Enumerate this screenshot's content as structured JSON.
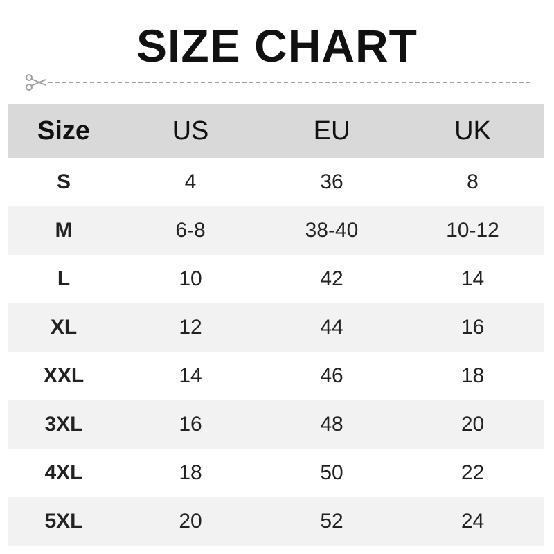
{
  "title": "SIZE CHART",
  "icons": {
    "cut_line": "scissors-icon"
  },
  "colors": {
    "header_bg": "#d9d9d9",
    "alt_row_bg": "#f2f2f2",
    "dash": "#a0a0a0"
  },
  "headers": [
    "Size",
    "US",
    "EU",
    "UK"
  ],
  "rows": [
    [
      "S",
      "4",
      "36",
      "8"
    ],
    [
      "M",
      "6-8",
      "38-40",
      "10-12"
    ],
    [
      "L",
      "10",
      "42",
      "14"
    ],
    [
      "XL",
      "12",
      "44",
      "16"
    ],
    [
      "XXL",
      "14",
      "46",
      "18"
    ],
    [
      "3XL",
      "16",
      "48",
      "20"
    ],
    [
      "4XL",
      "18",
      "50",
      "22"
    ],
    [
      "5XL",
      "20",
      "52",
      "24"
    ]
  ]
}
